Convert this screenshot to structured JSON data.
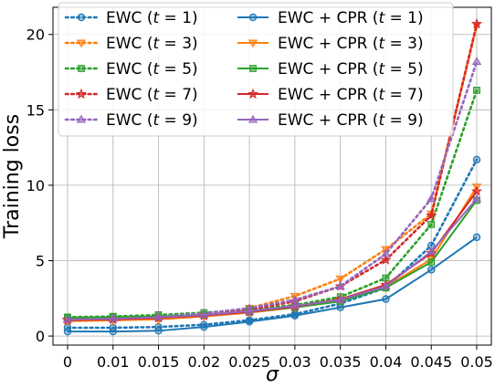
{
  "chart_data": {
    "type": "line",
    "title": "",
    "xlabel": "σ",
    "ylabel": "Training loss",
    "x": [
      0,
      0.01,
      0.015,
      0.02,
      0.025,
      0.03,
      0.035,
      0.04,
      0.045,
      0.05
    ],
    "xtick_labels": [
      "0",
      "0.01",
      "0.015",
      "0.02",
      "0.025",
      "0.03",
      "0.035",
      "0.04",
      "0.045",
      "0.05"
    ],
    "yticks": [
      0,
      5,
      10,
      15,
      20
    ],
    "ylim": [
      -0.6,
      21.8
    ],
    "grid": true,
    "legend_position": "top-left",
    "legend_columns": 2,
    "series": [
      {
        "name": "EWC (t = 1)",
        "name_prefix": "EWC (",
        "t": "1",
        "color": "#1f77b4",
        "style": "dotted",
        "marker": "circle",
        "values": [
          0.55,
          0.55,
          0.6,
          0.75,
          1.05,
          1.45,
          2.15,
          3.2,
          6.0,
          11.7
        ]
      },
      {
        "name": "EWC (t = 3)",
        "name_prefix": "EWC (",
        "t": "3",
        "color": "#ff7f0e",
        "style": "dotted",
        "marker": "triangle-down",
        "values": [
          1.0,
          1.05,
          1.15,
          1.4,
          1.85,
          2.65,
          3.8,
          5.75,
          8.1,
          20.6
        ]
      },
      {
        "name": "EWC (t = 5)",
        "name_prefix": "EWC (",
        "t": "5",
        "color": "#2ca02c",
        "style": "dotted",
        "marker": "square",
        "values": [
          1.25,
          1.3,
          1.4,
          1.55,
          1.75,
          2.05,
          2.6,
          3.85,
          7.4,
          16.3
        ]
      },
      {
        "name": "EWC (t = 7)",
        "name_prefix": "EWC (",
        "t": "7",
        "color": "#d62728",
        "style": "dotted",
        "marker": "star",
        "values": [
          1.1,
          1.15,
          1.25,
          1.45,
          1.75,
          2.3,
          3.3,
          5.05,
          8.0,
          20.7
        ]
      },
      {
        "name": "EWC (t = 9)",
        "name_prefix": "EWC (",
        "t": "9",
        "color": "#9467bd",
        "style": "dotted",
        "marker": "triangle-up",
        "values": [
          1.15,
          1.2,
          1.3,
          1.5,
          1.85,
          2.4,
          3.3,
          5.45,
          9.1,
          18.2
        ]
      },
      {
        "name": "EWC + CPR (t = 1)",
        "name_prefix": "EWC + CPR (",
        "t": "1",
        "color": "#1f77b4",
        "style": "solid",
        "marker": "circle",
        "values": [
          0.3,
          0.3,
          0.35,
          0.6,
          0.95,
          1.35,
          1.9,
          2.45,
          4.4,
          6.55
        ]
      },
      {
        "name": "EWC + CPR (t = 3)",
        "name_prefix": "EWC + CPR (",
        "t": "3",
        "color": "#ff7f0e",
        "style": "solid",
        "marker": "triangle-down",
        "values": [
          1.0,
          1.05,
          1.1,
          1.3,
          1.55,
          1.9,
          2.35,
          3.25,
          5.1,
          9.9
        ]
      },
      {
        "name": "EWC + CPR (t = 5)",
        "name_prefix": "EWC + CPR (",
        "t": "5",
        "color": "#2ca02c",
        "style": "solid",
        "marker": "square",
        "values": [
          1.2,
          1.25,
          1.3,
          1.4,
          1.6,
          1.9,
          2.3,
          3.2,
          4.9,
          9.0
        ]
      },
      {
        "name": "EWC + CPR (t = 7)",
        "name_prefix": "EWC + CPR (",
        "t": "7",
        "color": "#d62728",
        "style": "solid",
        "marker": "star",
        "values": [
          1.05,
          1.1,
          1.2,
          1.35,
          1.6,
          1.95,
          2.45,
          3.4,
          5.5,
          9.6
        ]
      },
      {
        "name": "EWC + CPR (t = 9)",
        "name_prefix": "EWC + CPR (",
        "t": "9",
        "color": "#9467bd",
        "style": "solid",
        "marker": "triangle-up",
        "values": [
          1.1,
          1.15,
          1.25,
          1.4,
          1.65,
          2.0,
          2.4,
          3.3,
          5.6,
          9.1
        ]
      }
    ]
  }
}
